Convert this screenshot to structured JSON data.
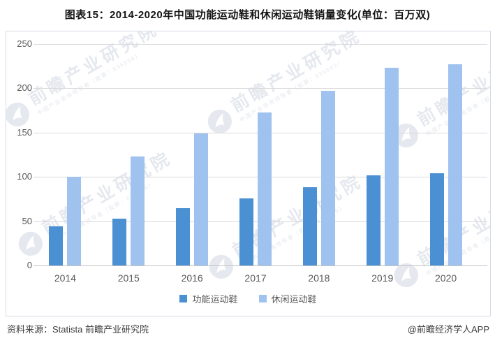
{
  "title": "图表15：2014-2020年中国功能运动鞋和休闲运动鞋销量变化(单位：百万双)",
  "chart_data": {
    "type": "bar",
    "categories": [
      "2014",
      "2015",
      "2016",
      "2017",
      "2018",
      "2019",
      "2020"
    ],
    "series": [
      {
        "name": "功能运动鞋",
        "color": "#4a90d2",
        "values": [
          44,
          53,
          65,
          76,
          88,
          102,
          104
        ]
      },
      {
        "name": "休闲运动鞋",
        "color": "#9fc3ee",
        "values": [
          100,
          123,
          149,
          173,
          197,
          223,
          227
        ]
      }
    ],
    "title": "图表15：2014-2020年中国功能运动鞋和休闲运动鞋销量变化(单位：百万双)",
    "xlabel": "",
    "ylabel": "",
    "unit": "百万双",
    "ylim": [
      0,
      250
    ],
    "yticks": [
      0,
      50,
      100,
      150,
      200,
      250
    ],
    "grid": true,
    "legend_position": "bottom"
  },
  "watermark": {
    "big_text": "前瞻产业研究院",
    "small_text": "中国产业咨询领导者（股票：839599）"
  },
  "footer": {
    "source": "资料来源：Statista 前瞻产业研究院",
    "credit": "@前瞻经济学人APP"
  }
}
